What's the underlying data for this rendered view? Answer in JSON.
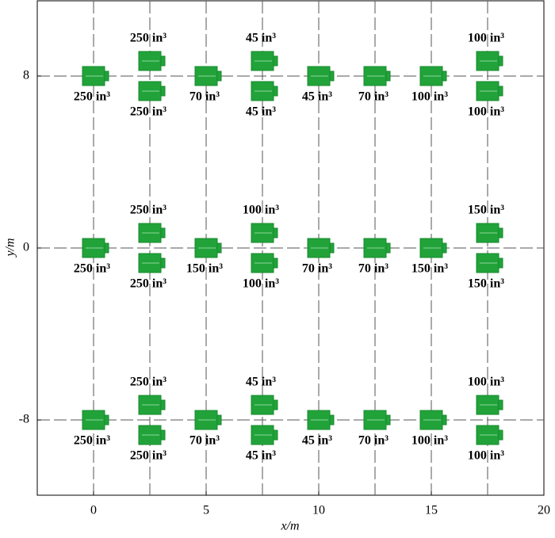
{
  "chart_data": {
    "type": "scatter",
    "xlabel": "x/m",
    "ylabel": "y/m",
    "xlim": [
      -2.5,
      20
    ],
    "xticks": [
      0,
      5,
      10,
      15,
      20
    ],
    "ylim": [
      -11.5,
      11.5
    ],
    "yticks": [
      -8,
      0,
      8
    ],
    "grid_x": [
      0,
      2.5,
      5,
      7.5,
      10,
      12.5,
      15,
      17.5
    ],
    "color": "#21a33a",
    "x": [
      0,
      2.5,
      2.5,
      5,
      7.5,
      7.5,
      10,
      12.5,
      15,
      17.5,
      17.5,
      0,
      2.5,
      2.5,
      5,
      7.5,
      7.5,
      10,
      12.5,
      15,
      17.5,
      17.5,
      0,
      2.5,
      2.5,
      5,
      7.5,
      7.5,
      10,
      12.5,
      15,
      17.5,
      17.5
    ],
    "values": [
      8,
      8.7,
      7.3,
      8,
      8.7,
      7.3,
      8,
      8,
      8,
      8.7,
      7.3,
      0,
      0.7,
      -0.7,
      0,
      0.7,
      -0.7,
      0,
      0,
      0,
      0.7,
      -0.7,
      -8,
      -7.3,
      -8.7,
      -8,
      -7.3,
      -8.7,
      -8,
      -8,
      -8,
      -7.3,
      -8.7
    ],
    "annotations": [
      "250 in³",
      "250 in³",
      "250 in³",
      "70 in³",
      "45 in³",
      "45 in³",
      "45 in³",
      "70 in³",
      "100 in³",
      "100 in³",
      "100 in³",
      "250 in³",
      "250 in³",
      "250 in³",
      "150 in³",
      "100 in³",
      "100 in³",
      "70 in³",
      "70 in³",
      "150 in³",
      "150 in³",
      "150 in³",
      "250 in³",
      "250 in³",
      "250 in³",
      "70 in³",
      "45 in³",
      "45 in³",
      "45 in³",
      "70 in³",
      "100 in³",
      "100 in³",
      "100 in³"
    ]
  }
}
